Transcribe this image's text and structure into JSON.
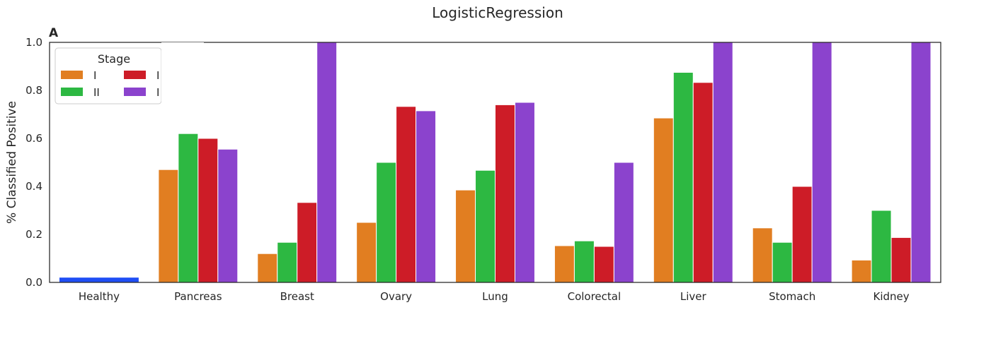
{
  "chart_data": {
    "type": "bar",
    "title": "LogisticRegression",
    "panel_label": "A",
    "xlabel": "",
    "ylabel": "% Classified Positive",
    "ylim": [
      0,
      1.0
    ],
    "yticks": [
      "0.0",
      "0.2",
      "0.4",
      "0.6",
      "0.8",
      "1.0"
    ],
    "grid": false,
    "categories": [
      "Healthy",
      "Pancreas",
      "Breast",
      "Ovary",
      "Lung",
      "Colorectal",
      "Liver",
      "Stomach",
      "Kidney"
    ],
    "healthy": {
      "value": 0.02,
      "color": "#1f4ef5"
    },
    "series": [
      {
        "name": "I",
        "color": "#e17e21",
        "values": [
          null,
          0.47,
          0.12,
          0.25,
          0.385,
          0.153,
          0.685,
          0.227,
          0.093
        ]
      },
      {
        "name": "II",
        "color": "#2db842",
        "values": [
          null,
          0.62,
          0.167,
          0.5,
          0.467,
          0.173,
          0.875,
          0.167,
          0.3
        ]
      },
      {
        "name": "III",
        "color": "#cd1c27",
        "values": [
          null,
          0.6,
          0.333,
          0.733,
          0.74,
          0.15,
          0.833,
          0.4,
          0.187
        ]
      },
      {
        "name": "IV",
        "color": "#8b43cd",
        "values": [
          null,
          0.555,
          1.0,
          0.715,
          0.75,
          0.5,
          1.0,
          1.0,
          1.0
        ]
      }
    ],
    "legend": {
      "title": "Stage",
      "placement": "top-left",
      "visible_labels": [
        "I",
        "II",
        "I",
        "I"
      ]
    }
  }
}
